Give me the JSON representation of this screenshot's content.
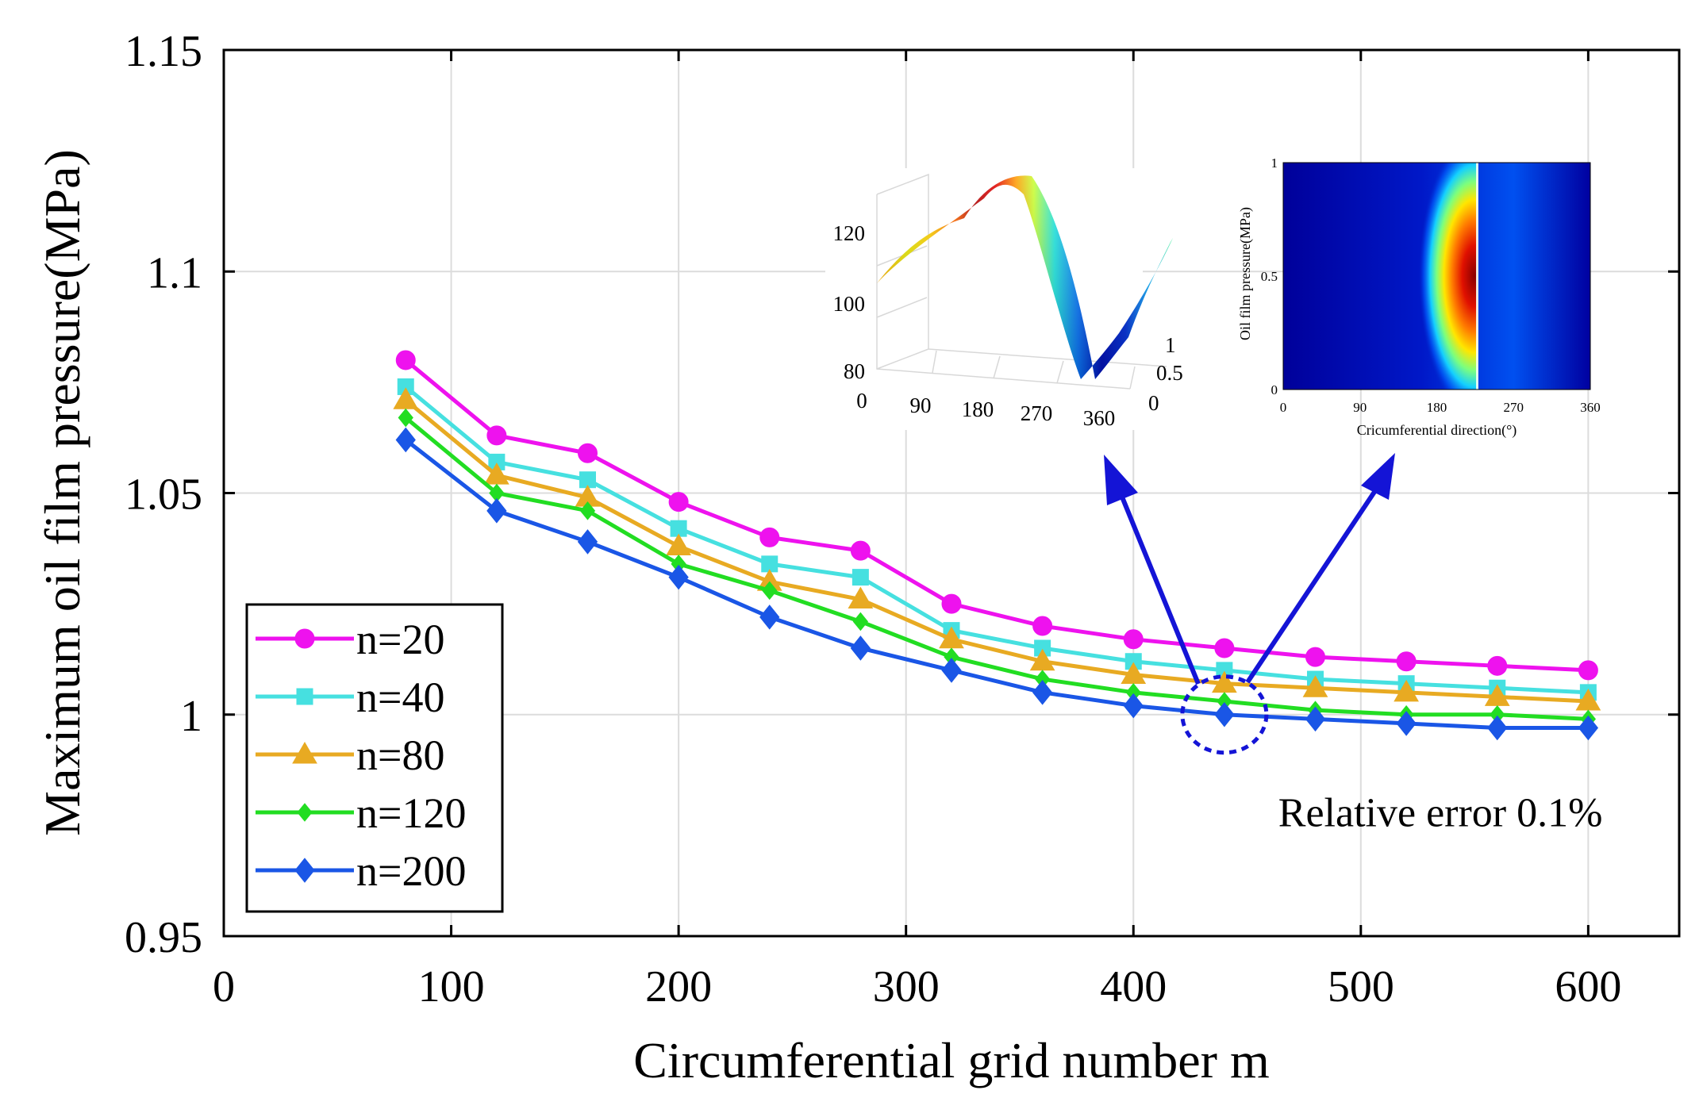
{
  "chart_data": {
    "type": "line",
    "xlabel": "Circumferential grid number m",
    "ylabel": "Maximum oil film pressure(MPa)",
    "xlim": [
      0,
      640
    ],
    "ylim": [
      0.95,
      1.15
    ],
    "xticks": [
      0,
      100,
      200,
      300,
      400,
      500,
      600
    ],
    "xtick_labels": [
      "0",
      "100",
      "200",
      "300",
      "400",
      "500",
      "600"
    ],
    "yticks": [
      0.95,
      1.0,
      1.05,
      1.1,
      1.15
    ],
    "ytick_labels": [
      "0.95",
      "1",
      "1.05",
      "1.1",
      "1.15"
    ],
    "grid": true,
    "legend_position": "bottom-left",
    "x": [
      80,
      120,
      160,
      200,
      240,
      280,
      320,
      360,
      400,
      440,
      480,
      520,
      560,
      600
    ],
    "series": [
      {
        "name": "n=20",
        "color": "#ee12ee",
        "marker": "circle",
        "values": [
          1.08,
          1.063,
          1.059,
          1.048,
          1.04,
          1.037,
          1.025,
          1.02,
          1.017,
          1.015,
          1.013,
          1.012,
          1.011,
          1.01
        ]
      },
      {
        "name": "n=40",
        "color": "#46e0e0",
        "marker": "square",
        "values": [
          1.074,
          1.057,
          1.053,
          1.042,
          1.034,
          1.031,
          1.019,
          1.015,
          1.012,
          1.01,
          1.008,
          1.007,
          1.006,
          1.005
        ]
      },
      {
        "name": "n=80",
        "color": "#e8aa22",
        "marker": "triangle",
        "values": [
          1.071,
          1.054,
          1.049,
          1.038,
          1.03,
          1.026,
          1.017,
          1.012,
          1.009,
          1.007,
          1.006,
          1.005,
          1.004,
          1.003
        ]
      },
      {
        "name": "n=120",
        "color": "#22dd22",
        "marker": "small-diamond",
        "values": [
          1.067,
          1.05,
          1.046,
          1.034,
          1.028,
          1.021,
          1.013,
          1.008,
          1.005,
          1.003,
          1.001,
          1.0,
          1.0,
          0.999
        ]
      },
      {
        "name": "n=200",
        "color": "#1a56e6",
        "marker": "diamond",
        "values": [
          1.062,
          1.046,
          1.039,
          1.031,
          1.022,
          1.015,
          1.01,
          1.005,
          1.002,
          1.0,
          0.999,
          0.998,
          0.997,
          0.997
        ]
      }
    ],
    "annotations": [
      {
        "text": "Relative error 0.1%",
        "x": 535,
        "y": 0.978
      },
      {
        "shape": "dashed-ellipse",
        "color": "#1414d6",
        "x": 440,
        "y": 1.0
      }
    ],
    "insets": [
      {
        "type": "surface3d",
        "x_ticks": [
          "0",
          "90",
          "180",
          "270",
          "360"
        ],
        "y_ticks": [
          "0",
          "0.5",
          "1"
        ],
        "z_ticks": [
          "80",
          "100",
          "120"
        ]
      },
      {
        "type": "heatmap",
        "x_ticks": [
          "0",
          "90",
          "180",
          "270",
          "360"
        ],
        "y_ticks": [
          "0",
          "0.5",
          "1"
        ],
        "xlabel": "Cricumferential direction(°)",
        "ylabel": "Oil film pressure(MPa)"
      }
    ]
  }
}
